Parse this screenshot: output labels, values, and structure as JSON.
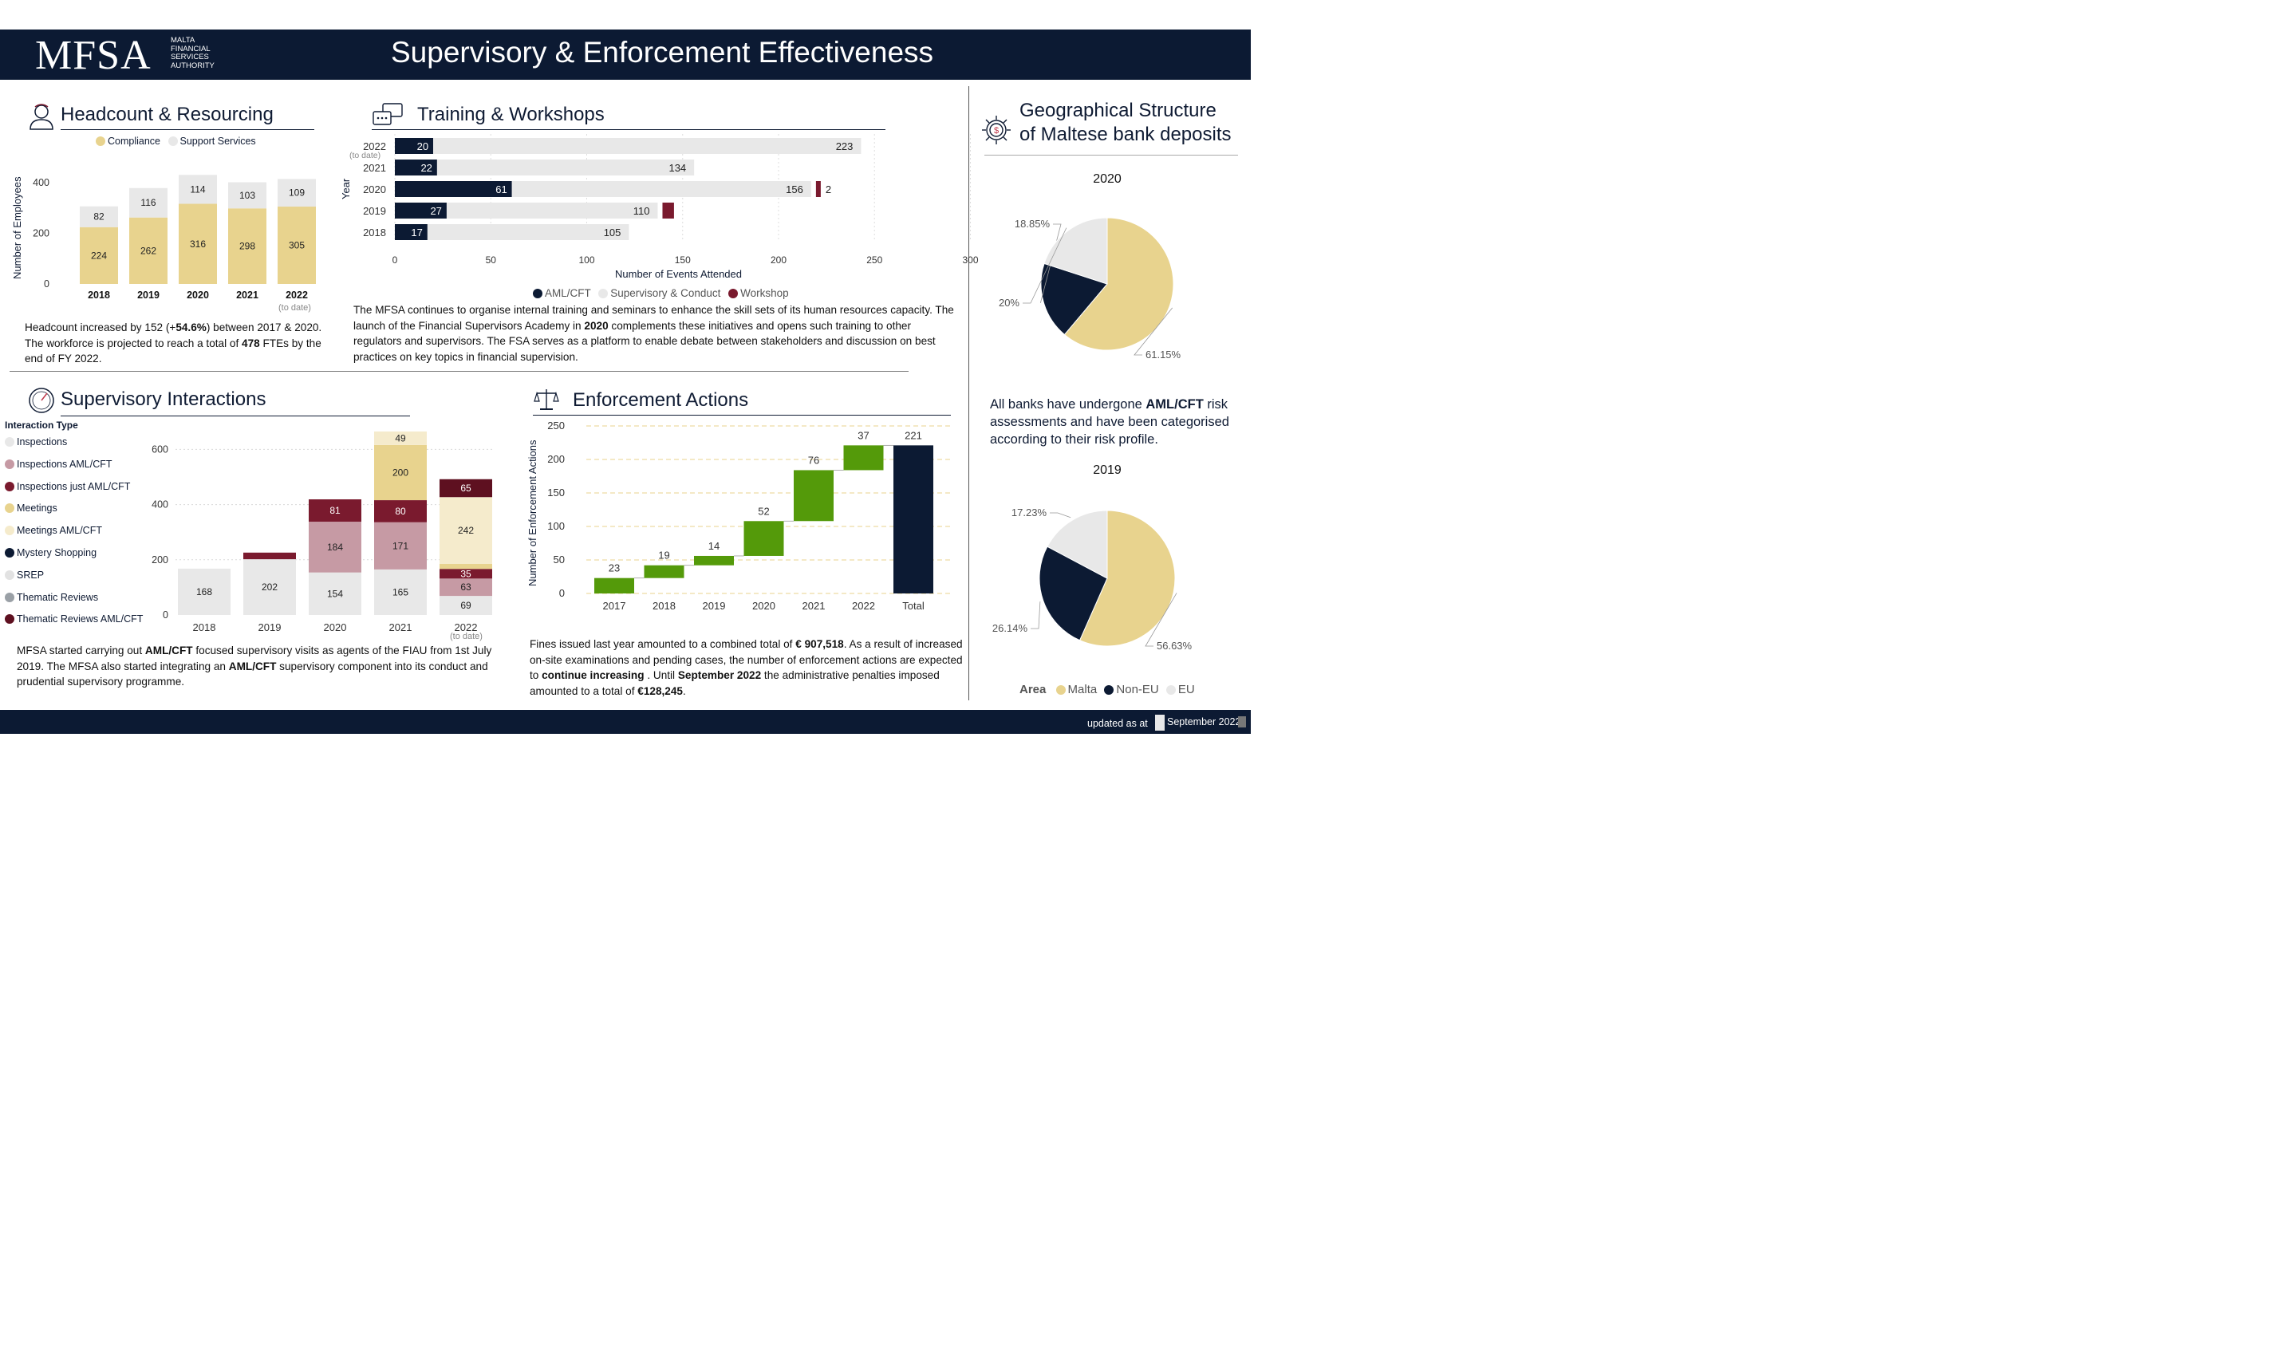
{
  "header": {
    "logo_text": "MFSA",
    "logo_sub": [
      "MALTA",
      "FINANCIAL",
      "SERVICES",
      "AUTHORITY"
    ],
    "title": "Supervisory & Enforcement Effectiveness"
  },
  "headcount": {
    "title": "Headcount & Resourcing",
    "legend": [
      "Compliance",
      "Support Services"
    ],
    "ylabel": "Number of Employees",
    "note_2022": "(to date)",
    "text_parts": [
      "Headcount increased by 152 (+",
      "54.6%",
      ") between 2017 & 2020. The workforce is projected to reach a total of ",
      "478",
      " FTEs by the end of FY 2022."
    ]
  },
  "training": {
    "title": "Training & Workshops",
    "ylabel": "Year",
    "xlabel": "Number of Events Attended",
    "year_note": "(to date)",
    "legend": [
      "AML/CFT",
      "Supervisory & Conduct",
      "Workshop"
    ],
    "text_parts": [
      "The MFSA continues to organise internal training and seminars to enhance the skill sets of its human resources capacity. The launch of the Financial Supervisors Academy in ",
      "2020",
      " complements these initiatives and opens such training to other regulators and supervisors. The FSA serves as a platform to enable debate between stakeholders and discussion on best practices on key topics in financial supervision."
    ]
  },
  "interactions": {
    "title": "Supervisory Interactions",
    "legend_title": "Interaction Type",
    "note_2022": "(to date)",
    "text_parts": [
      "MFSA started carrying out ",
      "AML/CFT",
      " focused supervisory visits as agents of the FIAU from 1st July 2019. The MFSA also started integrating an ",
      "AML/CFT",
      " supervisory component into its conduct and prudential supervisory programme."
    ]
  },
  "enforcement": {
    "title": "Enforcement Actions",
    "ylabel": "Number of Enforcement Actions",
    "text_parts": [
      "Fines issued last year amounted to a combined total of ",
      "€ 907,518",
      ". As a result of increased on-site examinations and pending cases, the number of enforcement actions are expected to ",
      "continue increasing",
      " . Until ",
      "September 2022",
      " the administrative penalties imposed amounted to a total of ",
      "€128,245",
      "."
    ]
  },
  "geo": {
    "title_line1": "Geographical Structure",
    "title_line2": "of Maltese bank deposits",
    "text_parts": [
      "All banks have undergone ",
      "AML/CFT",
      " risk assessments and have been categorised according to their risk profile."
    ],
    "legend_title": "Area",
    "legend": [
      "Malta",
      "Non-EU",
      "EU"
    ]
  },
  "footer": {
    "updated_label": "updated as at",
    "date": "September 2022"
  },
  "colors": {
    "navy": "#0c1a33",
    "gold": "#e8d38e",
    "light_gray": "#e8e8e8",
    "maroon": "#7a1a2e",
    "pink": "#c69aa4",
    "cream": "#f5ebcc",
    "green": "#549a0a",
    "gray": "#9aa0a6"
  },
  "chart_data": [
    {
      "id": "headcount",
      "type": "bar",
      "stacked": true,
      "categories": [
        "2018",
        "2019",
        "2020",
        "2021",
        "2022"
      ],
      "series": [
        {
          "name": "Compliance",
          "color": "#e8d38e",
          "values": [
            224,
            262,
            316,
            298,
            305
          ]
        },
        {
          "name": "Support Services",
          "color": "#e8e8e8",
          "values": [
            82,
            116,
            114,
            103,
            109
          ]
        }
      ],
      "yticks": [
        0,
        200,
        400
      ],
      "ylim": [
        0,
        470
      ],
      "ylabel": "Number of Employees"
    },
    {
      "id": "training",
      "type": "bar",
      "orientation": "horizontal",
      "stacked": true,
      "categories": [
        "2022",
        "2021",
        "2020",
        "2019",
        "2018"
      ],
      "series": [
        {
          "name": "AML/CFT",
          "color": "#0c1a33",
          "values": [
            20,
            22,
            61,
            27,
            17
          ]
        },
        {
          "name": "Supervisory & Conduct",
          "color": "#e8e8e8",
          "values": [
            223,
            134,
            156,
            110,
            105
          ]
        },
        {
          "name": "Workshop",
          "color": "#7a1a2e",
          "values": [
            0,
            0,
            2,
            6,
            0
          ]
        }
      ],
      "workshop_labels": [
        "",
        "",
        "2",
        "",
        ""
      ],
      "xticks": [
        0,
        50,
        100,
        150,
        200,
        250,
        300
      ],
      "xlim": [
        0,
        300
      ],
      "xlabel": "Number of Events Attended",
      "ylabel": "Year"
    },
    {
      "id": "interactions",
      "type": "bar",
      "stacked": true,
      "categories": [
        "2018",
        "2019",
        "2020",
        "2021",
        "2022"
      ],
      "legend_title": "Interaction Type",
      "series": [
        {
          "name": "Inspections",
          "color": "#e8e8e8",
          "values": [
            168,
            202,
            154,
            165,
            69
          ]
        },
        {
          "name": "Inspections  AML/CFT",
          "color": "#c69aa4",
          "values": [
            0,
            0,
            184,
            171,
            63
          ]
        },
        {
          "name": "Inspections just AML/CFT",
          "color": "#7a1a2e",
          "values": [
            0,
            24,
            81,
            80,
            35
          ]
        },
        {
          "name": "Meetings",
          "color": "#e8d38e",
          "values": [
            0,
            0,
            0,
            200,
            18
          ]
        },
        {
          "name": "Meetings  AML/CFT",
          "color": "#f5ebcc",
          "values": [
            0,
            0,
            0,
            49,
            242
          ]
        },
        {
          "name": "Mystery Shopping",
          "color": "#0c1a33",
          "values": [
            0,
            0,
            0,
            0,
            0
          ]
        },
        {
          "name": "SREP",
          "color": "#e2e2e2",
          "values": [
            0,
            0,
            0,
            0,
            0
          ]
        },
        {
          "name": "Thematic Reviews",
          "color": "#9aa0a6",
          "values": [
            0,
            0,
            0,
            0,
            0
          ]
        },
        {
          "name": "Thematic Reviews   AML/CFT",
          "color": "#5e1020",
          "values": [
            0,
            0,
            0,
            0,
            65
          ]
        }
      ],
      "hidden_labels": [
        [
          "2019",
          "Inspections just AML/CFT"
        ],
        [
          "2022",
          "Meetings"
        ]
      ],
      "yticks": [
        0,
        200,
        400,
        600
      ],
      "ylim": [
        0,
        660
      ]
    },
    {
      "id": "enforcement",
      "type": "bar",
      "subtype": "waterfall",
      "categories": [
        "2017",
        "2018",
        "2019",
        "2020",
        "2021",
        "2022",
        "Total"
      ],
      "values": [
        23,
        19,
        14,
        52,
        76,
        37,
        221
      ],
      "is_total": [
        false,
        false,
        false,
        false,
        false,
        false,
        true
      ],
      "colors": {
        "increase": "#549a0a",
        "total": "#0c1a33"
      },
      "yticks": [
        0,
        50,
        100,
        150,
        200,
        250
      ],
      "ylim": [
        0,
        250
      ],
      "ylabel": "Number of Enforcement Actions"
    },
    {
      "id": "deposits-2020",
      "type": "pie",
      "title": "2020",
      "categories": [
        "Malta",
        "Non-EU",
        "EU"
      ],
      "values": [
        61.15,
        18.85,
        20
      ],
      "labels": [
        "61.15%",
        "18.85%",
        "20%"
      ],
      "colors": [
        "#e8d38e",
        "#0c1a33",
        "#e8e8e8"
      ]
    },
    {
      "id": "deposits-2019",
      "type": "pie",
      "title": "2019",
      "categories": [
        "Malta",
        "Non-EU",
        "EU"
      ],
      "values": [
        56.63,
        26.14,
        17.23
      ],
      "labels": [
        "56.63%",
        "26.14%",
        "17.23%"
      ],
      "colors": [
        "#e8d38e",
        "#0c1a33",
        "#e8e8e8"
      ]
    }
  ]
}
